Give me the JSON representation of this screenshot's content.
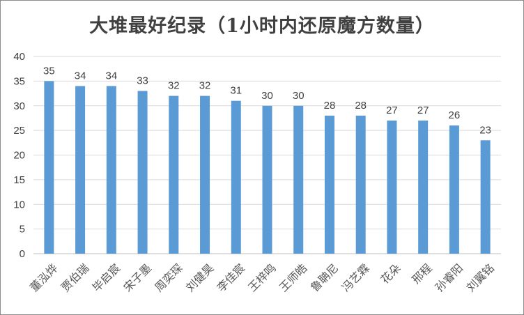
{
  "chart_data": {
    "type": "bar",
    "title": "大堆最好纪录（1小时内还原魔方数量）",
    "categories": [
      "董泓烨",
      "贾伯瑞",
      "毕启宸",
      "宋子墨",
      "周奕琛",
      "刘健昊",
      "李佳宸",
      "王梓鸣",
      "王师皓",
      "鲁聃尼",
      "冯艺霖",
      "花朵",
      "邢程",
      "孙睿阳",
      "刘翼铭"
    ],
    "values": [
      35,
      34,
      34,
      33,
      32,
      32,
      31,
      30,
      30,
      28,
      28,
      27,
      27,
      26,
      23
    ],
    "yticks": [
      "0",
      "5",
      "10",
      "15",
      "20",
      "25",
      "30",
      "35",
      "40"
    ],
    "ylim": [
      0,
      40
    ],
    "grid": true,
    "data_labels": true,
    "bar_color": "#5b9bd5",
    "grid_color": "#d9d9d9"
  }
}
